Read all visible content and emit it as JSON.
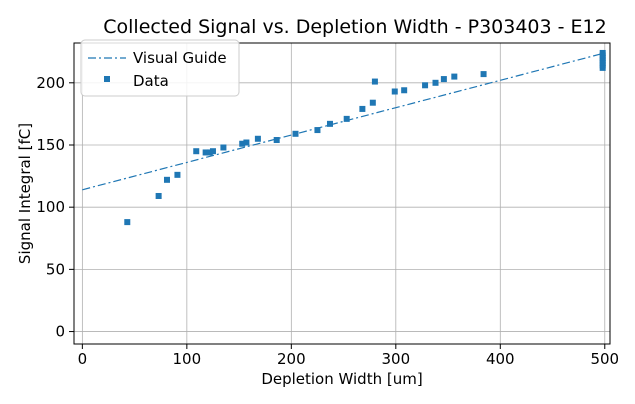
{
  "chart_data": {
    "type": "scatter",
    "title": "Collected Signal vs. Depletion Width - P303403 - E12",
    "xlabel": "Depletion Width [um]",
    "ylabel": "Signal Integral [fC]",
    "xlim": [
      -8,
      505
    ],
    "ylim": [
      -10,
      232
    ],
    "xticks": [
      0,
      100,
      200,
      300,
      400,
      500
    ],
    "yticks": [
      0,
      50,
      100,
      150,
      200
    ],
    "grid": true,
    "legend_position": "top-left",
    "colors": {
      "series": "#1f77b4",
      "grid": "#b0b0b0",
      "axes": "#000000"
    },
    "series": [
      {
        "name": "Visual Guide",
        "kind": "line",
        "style": "dash-dot",
        "x": [
          0,
          500
        ],
        "y": [
          114,
          224
        ]
      },
      {
        "name": "Data",
        "kind": "marker",
        "marker": "square",
        "x": [
          43,
          73,
          81,
          91,
          109,
          118,
          122,
          125,
          135,
          153,
          157,
          168,
          186,
          204,
          225,
          237,
          253,
          268,
          278,
          280,
          299,
          308,
          328,
          338,
          346,
          356,
          384,
          498,
          498,
          498,
          498,
          498,
          498,
          498
        ],
        "y": [
          88,
          109,
          122,
          126,
          145,
          144,
          144,
          145,
          148,
          151,
          152,
          155,
          154,
          159,
          162,
          167,
          171,
          179,
          184,
          201,
          193,
          194,
          198,
          200,
          203,
          205,
          207,
          212,
          214,
          216,
          218,
          220,
          222,
          224
        ]
      }
    ]
  }
}
